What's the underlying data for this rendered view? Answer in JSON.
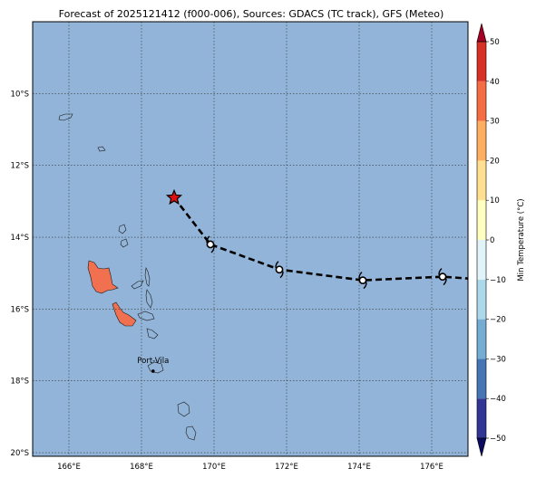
{
  "title": "Forecast of 2025121412 (f000-006), Sources: GDACS (TC track), GFS (Meteo)",
  "map": {
    "lon_range": [
      165.0,
      177.0
    ],
    "lat_range": [
      -20.1,
      -8.0
    ],
    "gridlines": true,
    "background_color": "#92b4d8",
    "land_color": "#92b4d8",
    "warm_land_color": "#f07050",
    "lon_ticks": [
      {
        "value": 166,
        "label": "166°E"
      },
      {
        "value": 168,
        "label": "168°E"
      },
      {
        "value": 170,
        "label": "170°E"
      },
      {
        "value": 172,
        "label": "172°E"
      },
      {
        "value": 174,
        "label": "174°E"
      },
      {
        "value": 176,
        "label": "176°E"
      }
    ],
    "lat_ticks": [
      {
        "value": -10,
        "label": "10°S"
      },
      {
        "value": -12,
        "label": "12°S"
      },
      {
        "value": -14,
        "label": "14°S"
      },
      {
        "value": -16,
        "label": "16°S"
      },
      {
        "value": -18,
        "label": "18°S"
      },
      {
        "value": -20,
        "label": "20°S"
      }
    ],
    "city": {
      "name": "Port-Vila",
      "lon": 168.32,
      "lat": -17.73
    }
  },
  "track": {
    "current_position": {
      "lon": 168.9,
      "lat": -12.9
    },
    "positions": [
      {
        "lon": 169.9,
        "lat": -14.2
      },
      {
        "lon": 171.8,
        "lat": -14.9
      },
      {
        "lon": 174.1,
        "lat": -15.2
      },
      {
        "lon": 176.3,
        "lat": -15.1
      },
      {
        "lon": 177.0,
        "lat": -15.15
      }
    ],
    "line_style": "dashed",
    "marker_color": "#e01010"
  },
  "colorbar": {
    "label": "Min Temperature (°C)",
    "min": -50,
    "max": 50,
    "ticks": [
      "50",
      "40",
      "30",
      "20",
      "10",
      "0",
      "−10",
      "−20",
      "−30",
      "−40",
      "−50"
    ],
    "bands_bottom_to_top": [
      {
        "from": -50,
        "to": -40,
        "color": "#313695"
      },
      {
        "from": -40,
        "to": -30,
        "color": "#4575b4"
      },
      {
        "from": -30,
        "to": -20,
        "color": "#74add1"
      },
      {
        "from": -20,
        "to": -10,
        "color": "#abd9e9"
      },
      {
        "from": -10,
        "to": 0,
        "color": "#e0f3f8"
      },
      {
        "from": 0,
        "to": 10,
        "color": "#ffffbf"
      },
      {
        "from": 10,
        "to": 20,
        "color": "#fee090"
      },
      {
        "from": 20,
        "to": 30,
        "color": "#fdae61"
      },
      {
        "from": 30,
        "to": 40,
        "color": "#f46d43"
      },
      {
        "from": 40,
        "to": 50,
        "color": "#d73027"
      }
    ],
    "extend_low_color": "#0b0b60",
    "extend_high_color": "#a50026"
  }
}
